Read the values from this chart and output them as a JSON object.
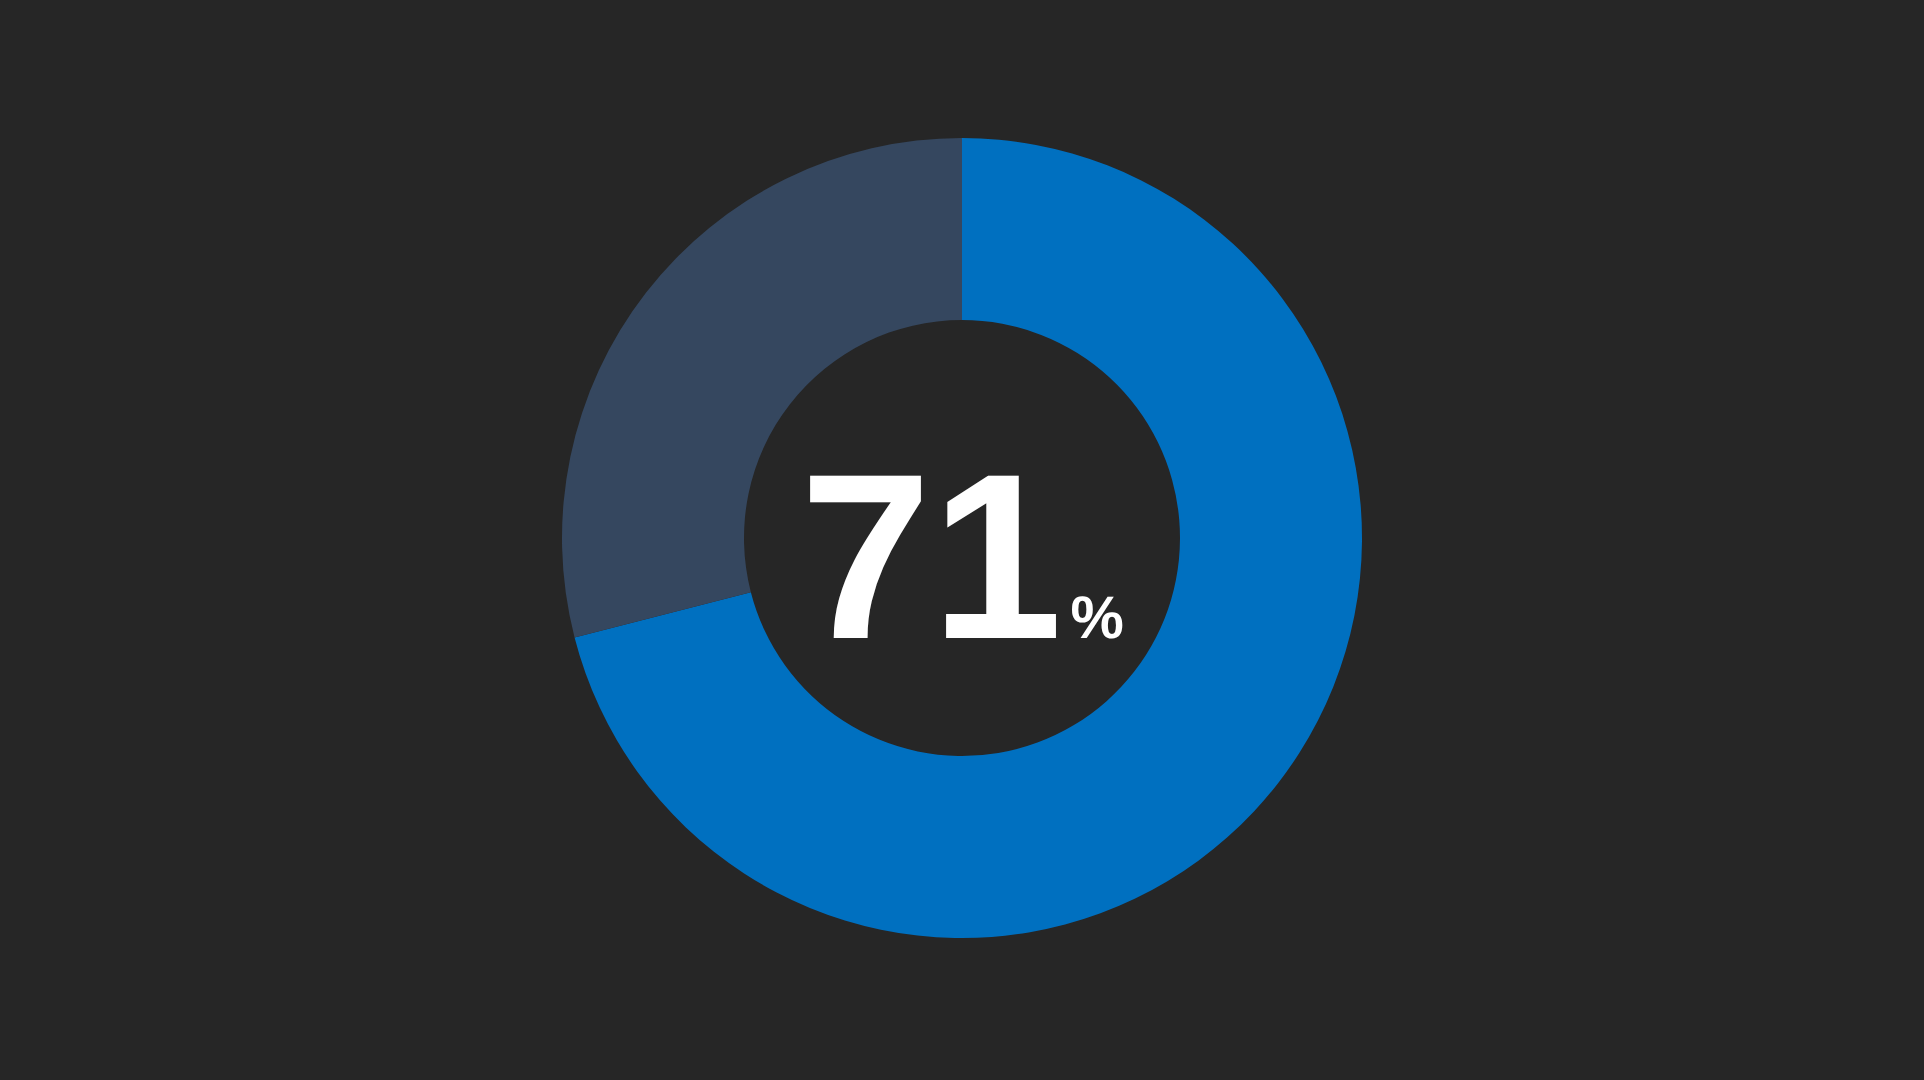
{
  "chart_data": {
    "type": "donut",
    "categories": [
      null,
      null
    ],
    "values": [
      71,
      29
    ],
    "colors": [
      "#0070c0",
      "#35475f"
    ],
    "annotations": [
      "71%"
    ]
  }
}
